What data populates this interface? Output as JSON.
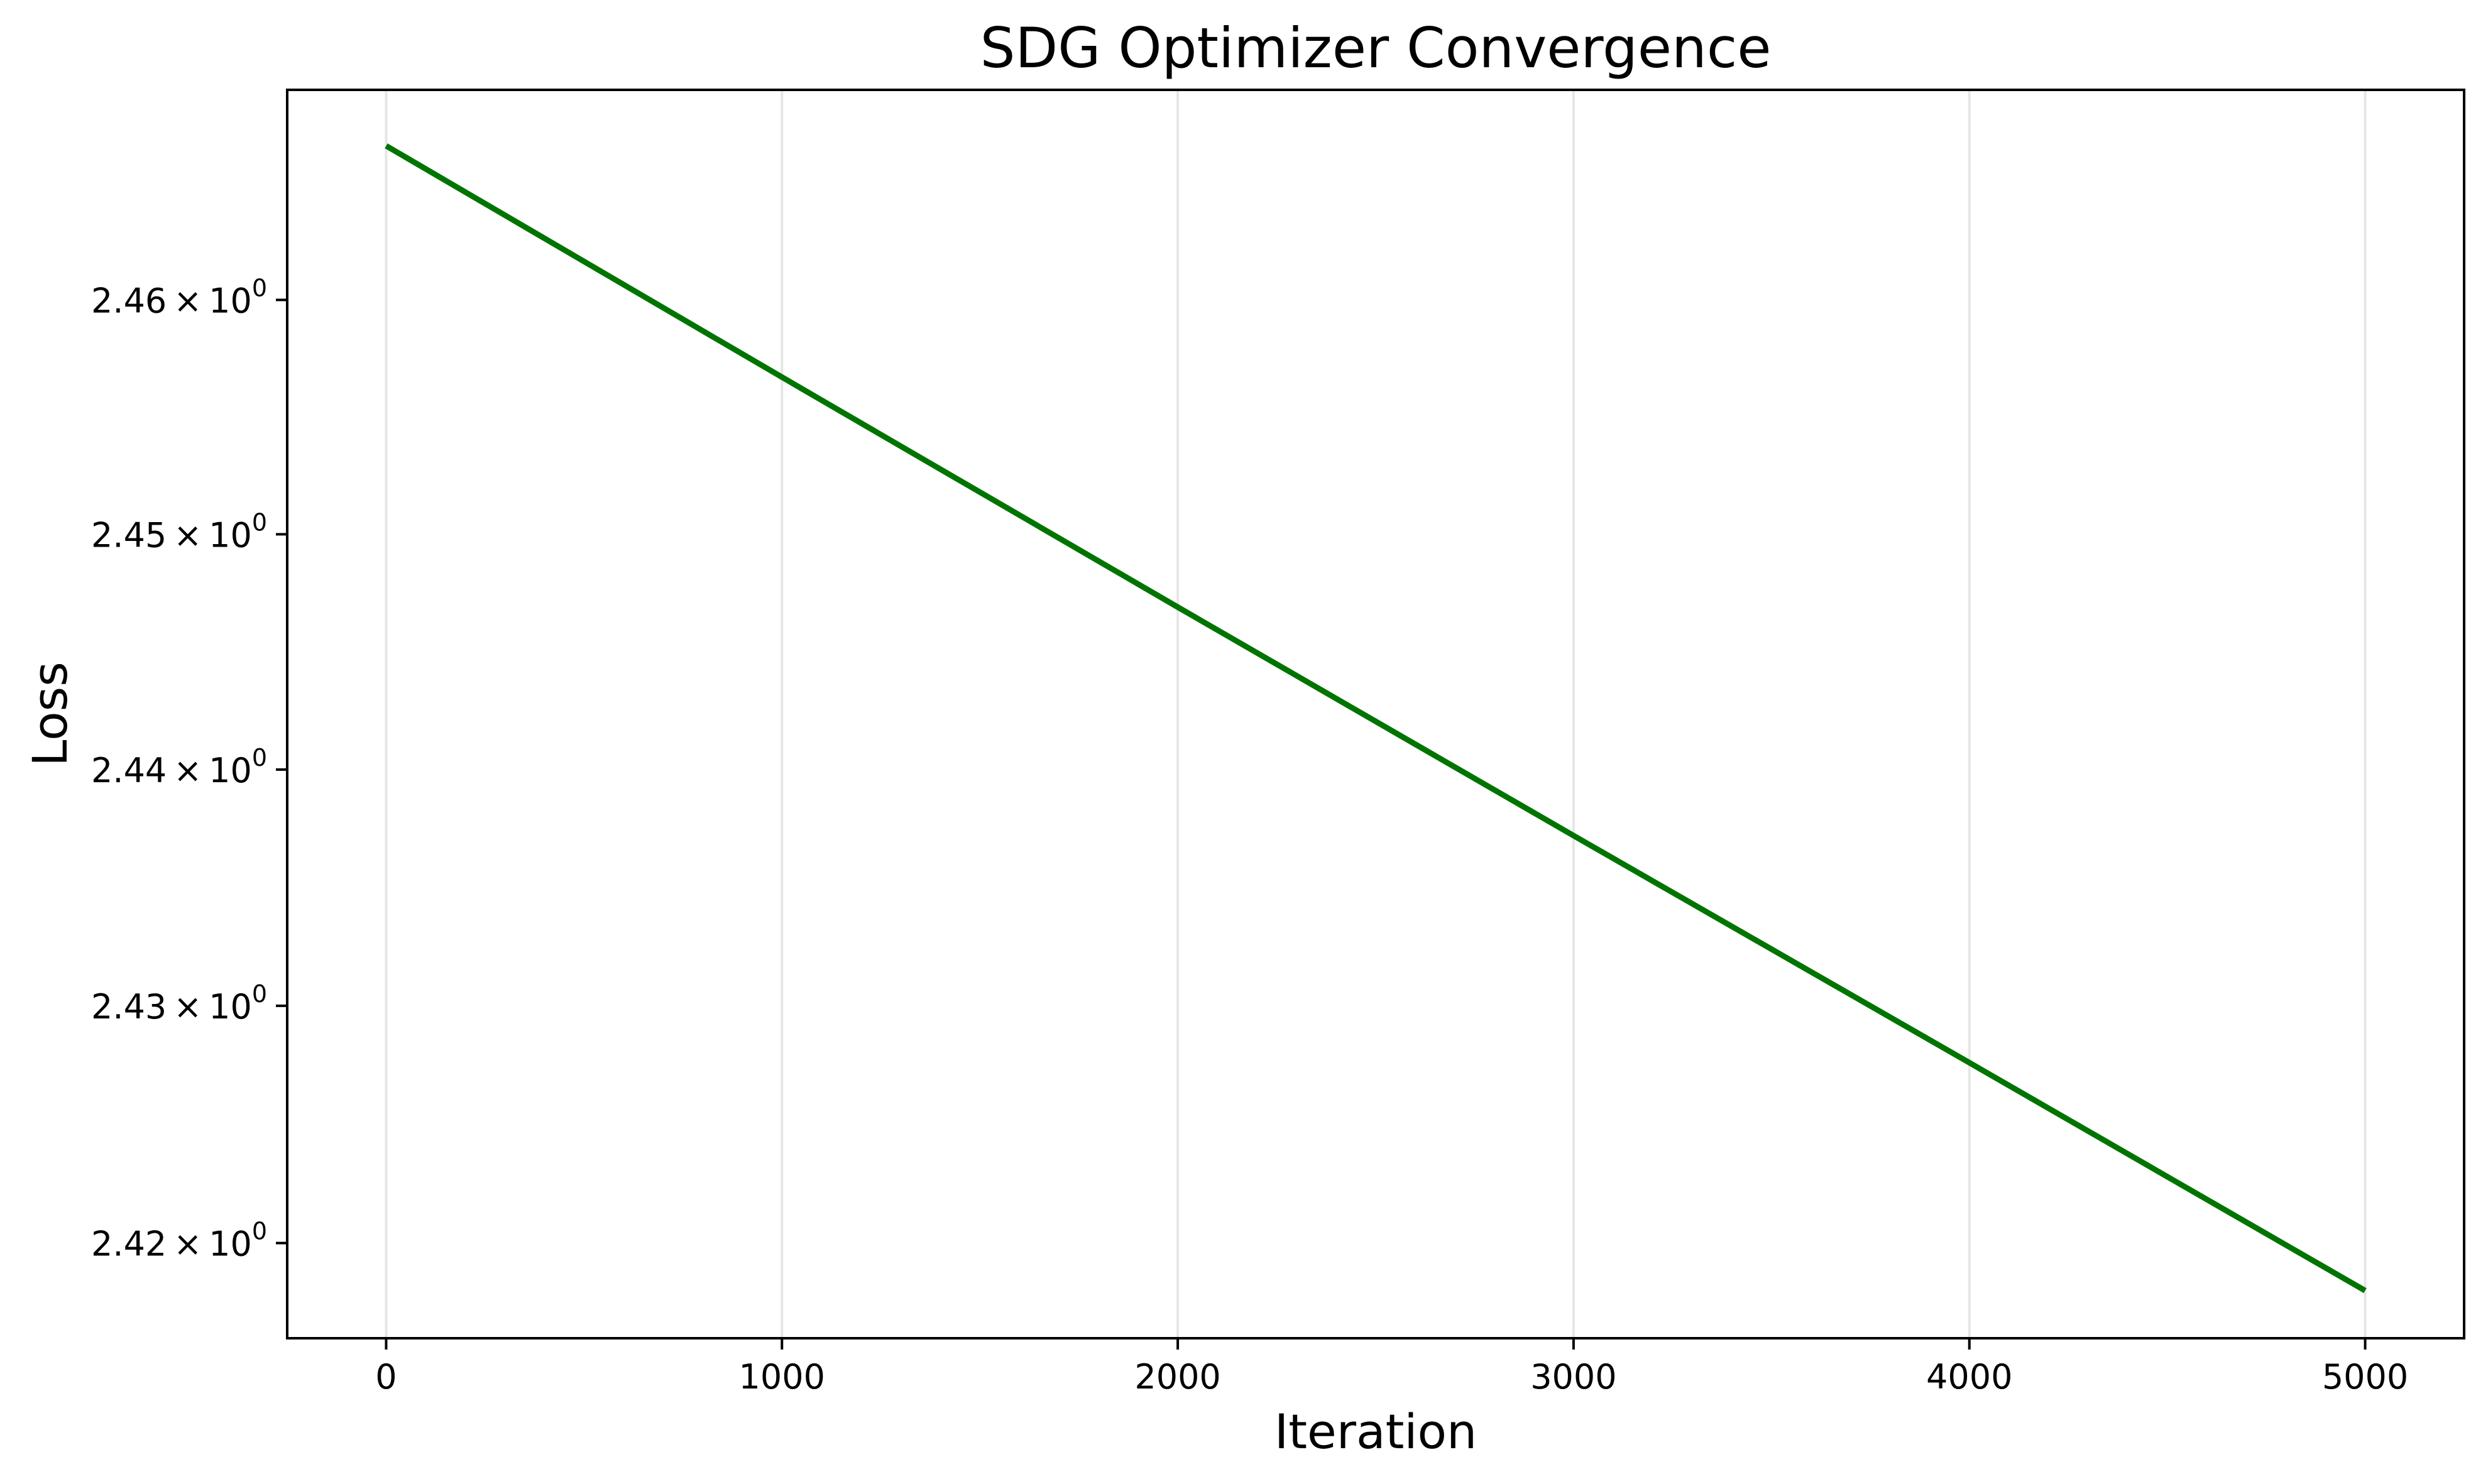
{
  "chart_data": {
    "type": "line",
    "title": "SDG Optimizer Convergence",
    "xlabel": "Iteration",
    "ylabel": "Loss",
    "xlim": [
      -250,
      5250
    ],
    "ylim": [
      2.416,
      2.469
    ],
    "yscale": "log",
    "grid": {
      "x": true,
      "y": false
    },
    "xticks": [
      0,
      1000,
      2000,
      3000,
      4000,
      5000
    ],
    "yticks": [
      {
        "value": 2.42,
        "mantissa": "2.42",
        "base": "10",
        "exponent": "0"
      },
      {
        "value": 2.43,
        "mantissa": "2.43",
        "base": "10",
        "exponent": "0"
      },
      {
        "value": 2.44,
        "mantissa": "2.44",
        "base": "10",
        "exponent": "0"
      },
      {
        "value": 2.45,
        "mantissa": "2.45",
        "base": "10",
        "exponent": "0"
      },
      {
        "value": 2.46,
        "mantissa": "2.46",
        "base": "10",
        "exponent": "0"
      }
    ],
    "series": [
      {
        "color": "#007400",
        "x": [
          0,
          1000,
          2000,
          3000,
          4000,
          5000
        ],
        "y": [
          2.4666,
          2.4567,
          2.4469,
          2.4372,
          2.4276,
          2.418
        ]
      }
    ]
  }
}
